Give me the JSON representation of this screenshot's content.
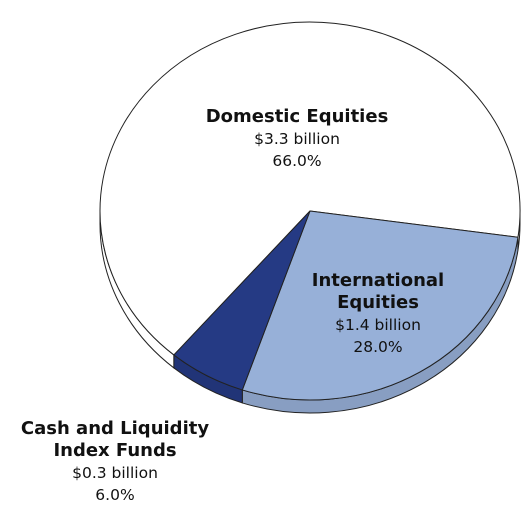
{
  "chart_data": {
    "type": "pie",
    "categories": [
      "Domestic Equities",
      "International Equities",
      "Cash and Liquidity Index Funds"
    ],
    "values": [
      66.0,
      28.0,
      6.0
    ],
    "value_labels": [
      "66.0%",
      "28.0%",
      "6.0%"
    ],
    "amount_labels": [
      "$3.3 billion",
      "$1.4 billion",
      "$0.3 billion"
    ],
    "colors": [
      "#ffffff",
      "#97b0d8",
      "#253a84"
    ]
  }
}
